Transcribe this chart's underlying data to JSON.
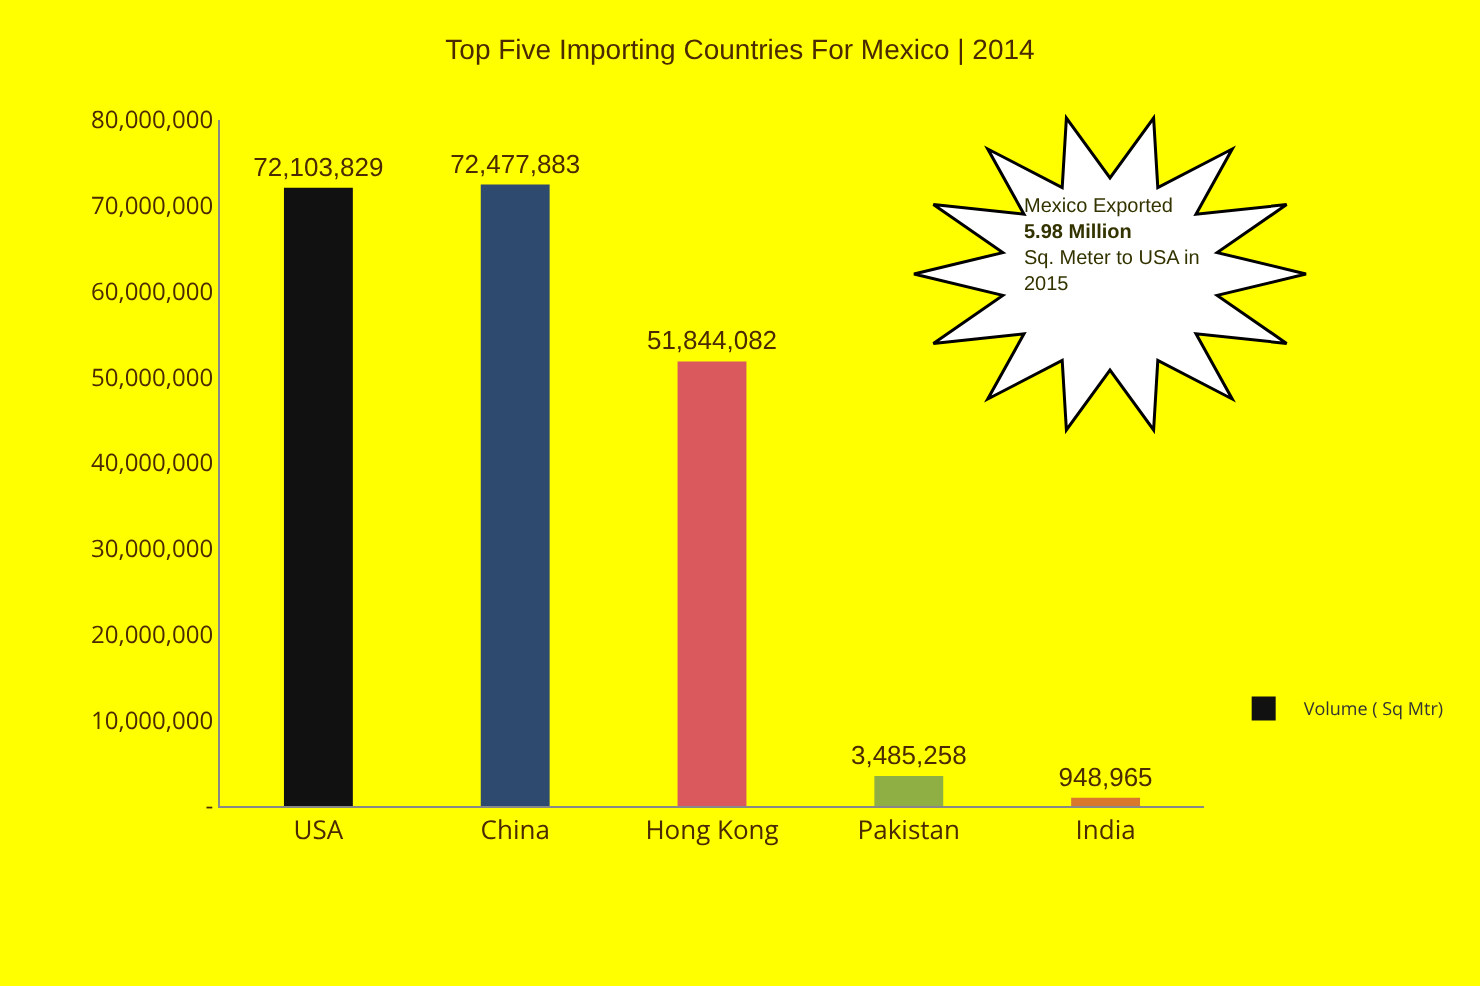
{
  "chart_data": {
    "type": "bar",
    "title": "Top Five Importing Countries For Mexico | 2014",
    "categories": [
      "USA",
      "China",
      "Hong Kong",
      "Pakistan",
      "India"
    ],
    "series": [
      {
        "name": "Volume ( Sq Mtr)",
        "colors": [
          "#111111",
          "#2e4a6e",
          "#d9595c",
          "#8fae44",
          "#d9782d"
        ],
        "values": [
          72103829,
          72477883,
          51844082,
          3485258,
          948965
        ],
        "value_labels": [
          "72,103,829",
          "72,477,883",
          "51,844,082",
          "3,485,258",
          "948,965"
        ]
      }
    ],
    "ylim": [
      0,
      80000000
    ],
    "yticks": [
      {
        "value": 0,
        "label": "-"
      },
      {
        "value": 10000000,
        "label": "10,000,000"
      },
      {
        "value": 20000000,
        "label": "20,000,000"
      },
      {
        "value": 30000000,
        "label": "30,000,000"
      },
      {
        "value": 40000000,
        "label": "40,000,000"
      },
      {
        "value": 50000000,
        "label": "50,000,000"
      },
      {
        "value": 60000000,
        "label": "60,000,000"
      },
      {
        "value": 70000000,
        "label": "70,000,000"
      },
      {
        "value": 80000000,
        "label": "80,000,000"
      }
    ],
    "grid": false,
    "legend": "right",
    "annotations": [
      "Mexico Exported\n5.98 Million\nSq. Meter to USA in\n2015"
    ]
  }
}
